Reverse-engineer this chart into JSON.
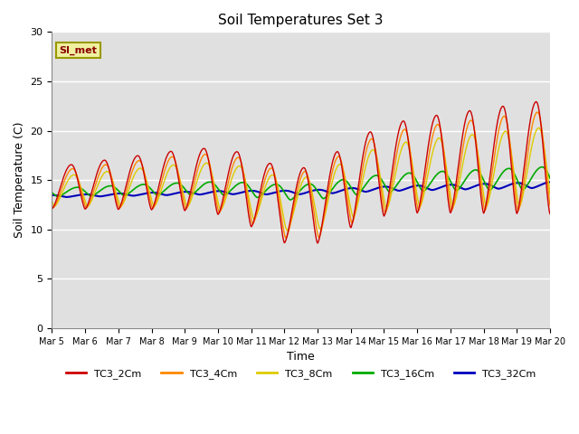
{
  "title": "Soil Temperatures Set 3",
  "xlabel": "Time",
  "ylabel": "Soil Temperature (C)",
  "ylim": [
    0,
    30
  ],
  "annotation": "SI_met",
  "background_color": "#e0e0e0",
  "outer_background": "#ffffff",
  "series_colors": [
    "#cc0000",
    "#ff8800",
    "#ddcc00",
    "#00aa00",
    "#0000bb"
  ],
  "series_labels": [
    "TC3_2Cm",
    "TC3_4Cm",
    "TC3_8Cm",
    "TC3_16Cm",
    "TC3_32Cm"
  ],
  "xtick_labels": [
    "Mar 5",
    "Mar 6",
    "Mar 7",
    "Mar 8",
    "Mar 9",
    "Mar 10",
    "Mar 11",
    "Mar 12",
    "Mar 13",
    "Mar 14",
    "Mar 15",
    "Mar 16",
    "Mar 17",
    "Mar 18",
    "Mar 19",
    "Mar 20"
  ],
  "n_days": 15,
  "points_per_day": 144
}
